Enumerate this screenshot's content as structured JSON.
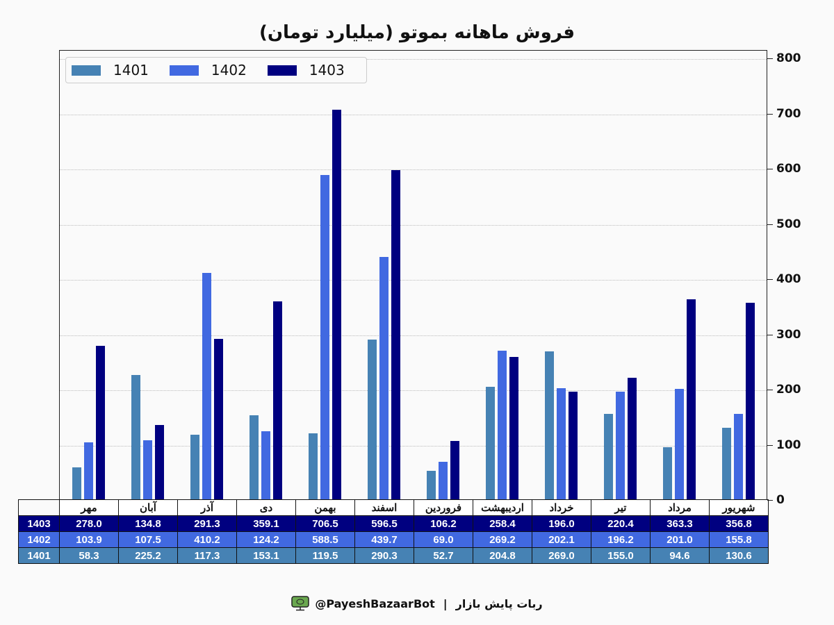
{
  "title": "فروش ماهانه بموتو (میلیارد تومان)",
  "legend": [
    {
      "label": "1401",
      "color": "#4682b4"
    },
    {
      "label": "1402",
      "color": "#4169e1"
    },
    {
      "label": "1403",
      "color": "#000080"
    }
  ],
  "yaxis": {
    "ticks": [
      "0",
      "100",
      "200",
      "300",
      "400",
      "500",
      "600",
      "700",
      "800"
    ]
  },
  "table": {
    "months": [
      "مهر",
      "آبان",
      "آذر",
      "دی",
      "بهمن",
      "اسفند",
      "فروردین",
      "اردیبهشت",
      "خرداد",
      "تیر",
      "مرداد",
      "شهریور"
    ],
    "rows": [
      {
        "label": "1403",
        "color": "#000080",
        "values": [
          "278.0",
          "134.8",
          "291.3",
          "359.1",
          "706.5",
          "596.5",
          "106.2",
          "258.4",
          "196.0",
          "220.4",
          "363.3",
          "356.8"
        ]
      },
      {
        "label": "1402",
        "color": "#4169e1",
        "values": [
          "103.9",
          "107.5",
          "410.2",
          "124.2",
          "588.5",
          "439.7",
          "69.0",
          "269.2",
          "202.1",
          "196.2",
          "201.0",
          "155.8"
        ]
      },
      {
        "label": "1401",
        "color": "#4682b4",
        "values": [
          "58.3",
          "225.2",
          "117.3",
          "153.1",
          "119.5",
          "290.3",
          "52.7",
          "204.8",
          "269.0",
          "155.0",
          "94.6",
          "130.6"
        ]
      }
    ]
  },
  "footer": {
    "handle": "@PayeshBazaarBot",
    "separator": "|",
    "name": "ربات پایش بازار"
  },
  "chart_data": {
    "type": "bar",
    "title": "فروش ماهانه بموتو (میلیارد تومان)",
    "xlabel": "",
    "ylabel": "",
    "ylim": [
      0,
      800
    ],
    "grid": true,
    "legend_position": "upper left",
    "categories": [
      "مهر",
      "آبان",
      "آذر",
      "دی",
      "بهمن",
      "اسفند",
      "فروردین",
      "اردیبهشت",
      "خرداد",
      "تیر",
      "مرداد",
      "شهریور"
    ],
    "series": [
      {
        "name": "1401",
        "color": "#4682b4",
        "values": [
          58.3,
          225.2,
          117.3,
          153.1,
          119.5,
          290.3,
          52.7,
          204.8,
          269.0,
          155.0,
          94.6,
          130.6
        ]
      },
      {
        "name": "1402",
        "color": "#4169e1",
        "values": [
          103.9,
          107.5,
          410.2,
          124.2,
          588.5,
          439.7,
          69.0,
          269.2,
          202.1,
          196.2,
          201.0,
          155.8
        ]
      },
      {
        "name": "1403",
        "color": "#000080",
        "values": [
          278.0,
          134.8,
          291.3,
          359.1,
          706.5,
          596.5,
          106.2,
          258.4,
          196.0,
          220.4,
          363.3,
          356.8
        ]
      }
    ]
  }
}
